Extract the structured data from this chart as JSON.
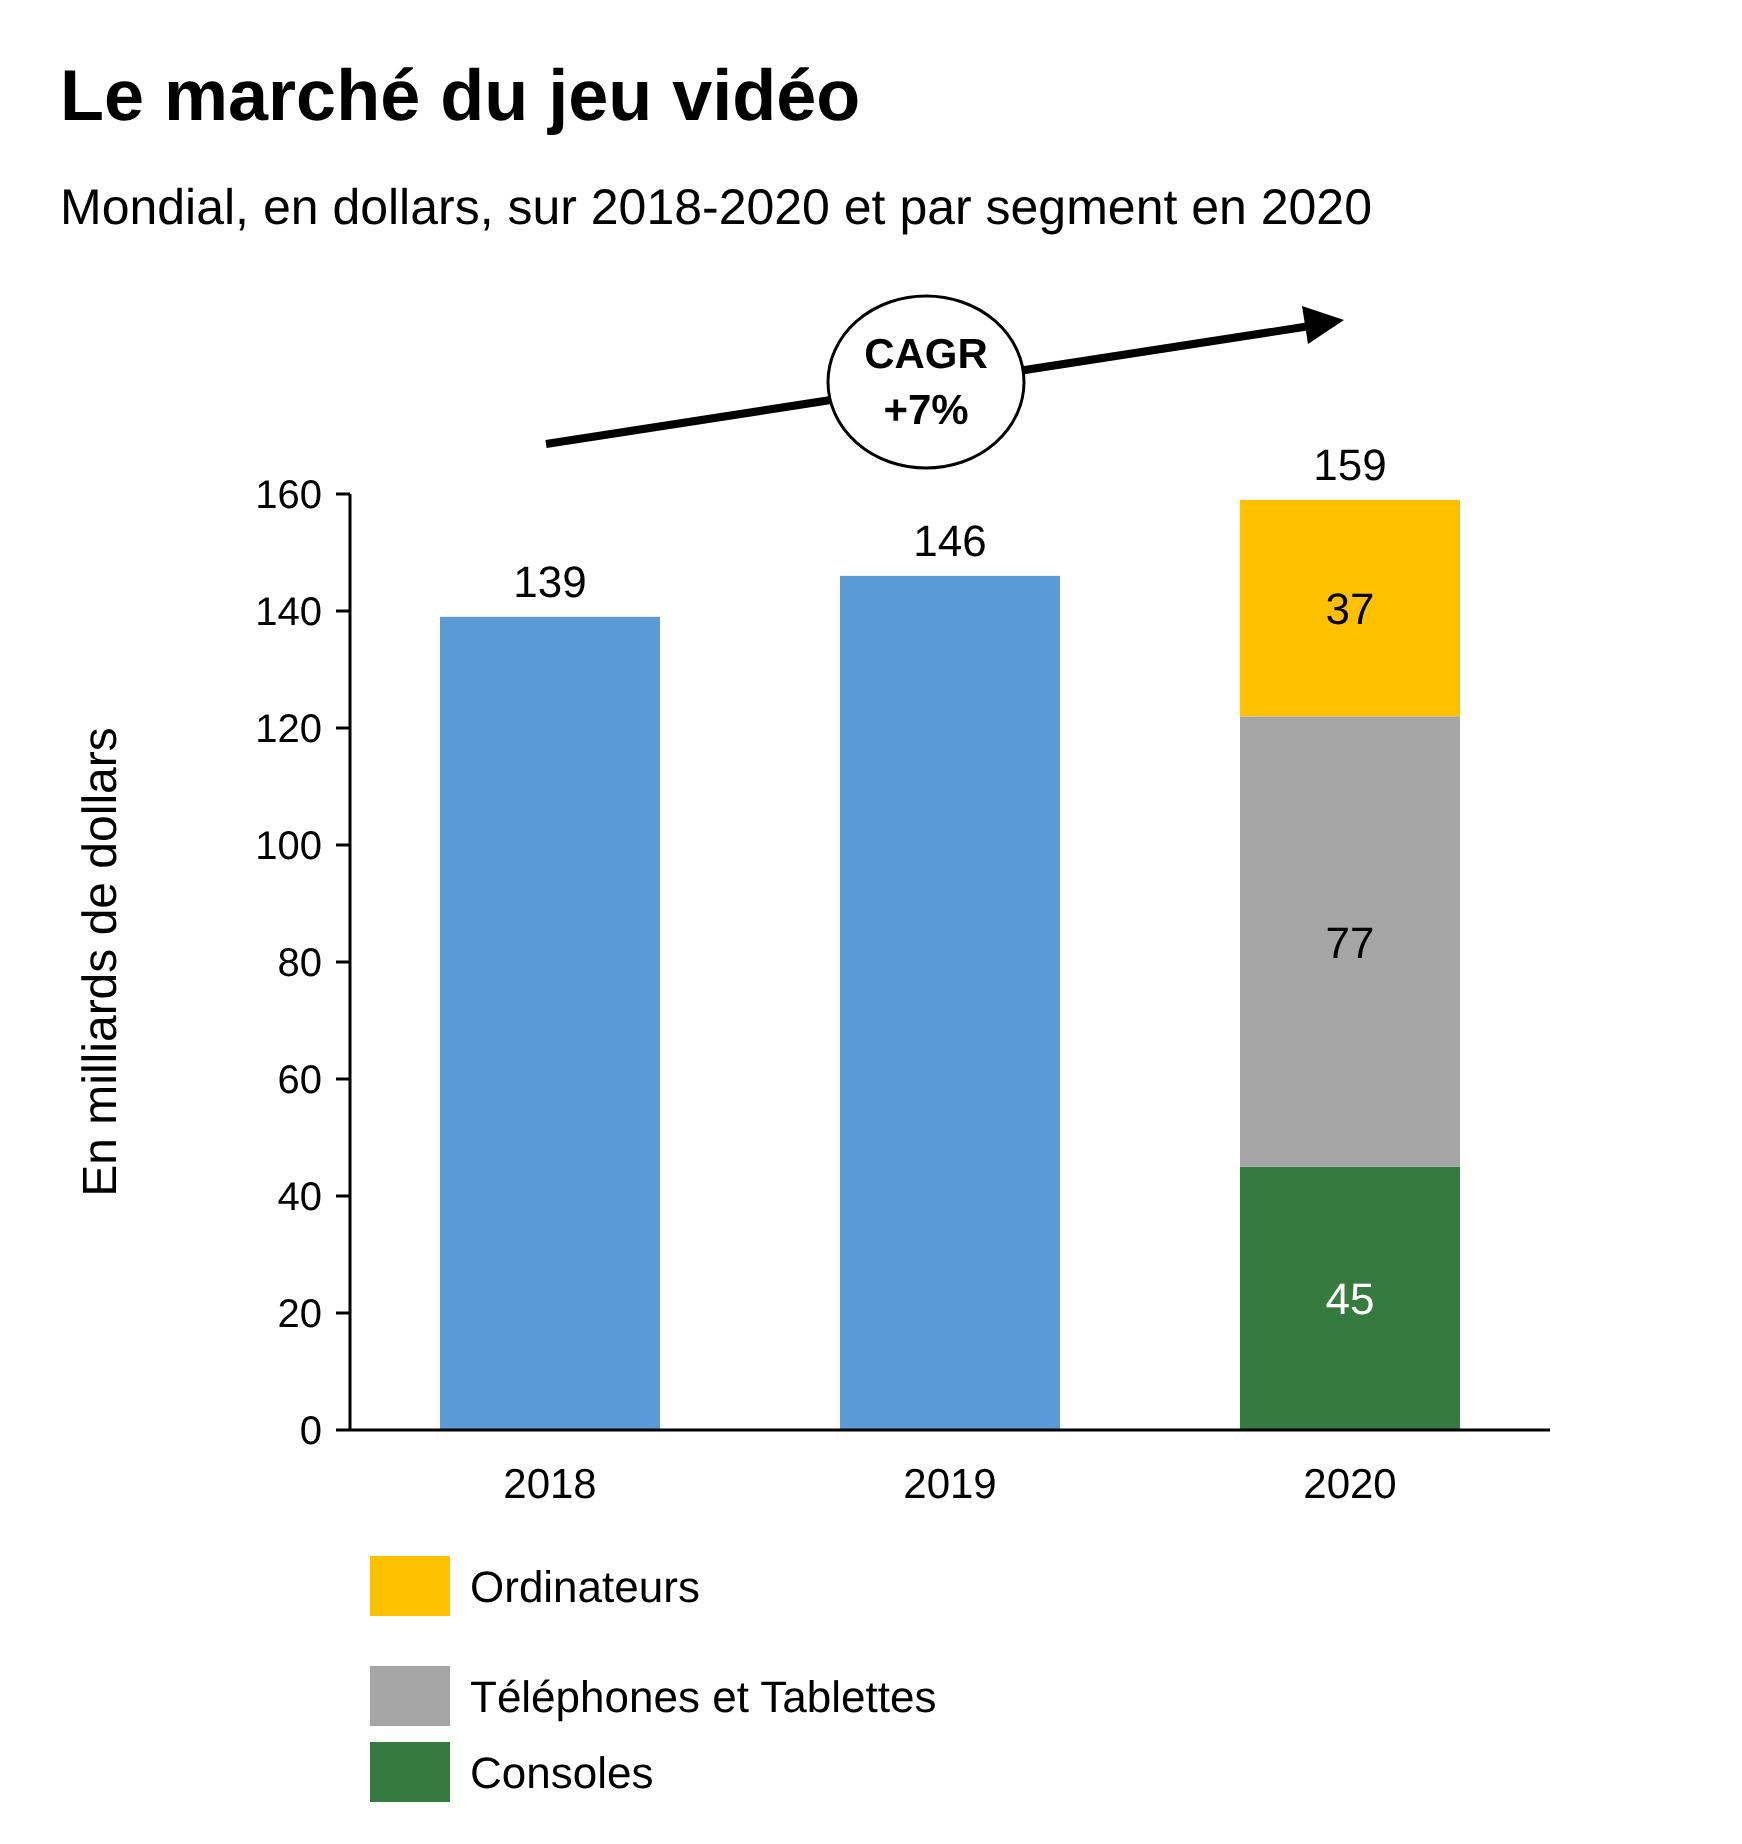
{
  "chart_data": {
    "type": "bar",
    "title": "Le marché du jeu vidéo",
    "subtitle": "Mondial, en dollars, sur 2018-2020 et par segment en 2020",
    "ylabel": "En milliards de dollars",
    "categories": [
      "2018",
      "2019",
      "2020"
    ],
    "stacked": true,
    "series": [
      {
        "color": "#5b9bd5",
        "values": [
          139,
          146,
          null
        ]
      },
      {
        "name": "Consoles",
        "color": "#357a3e",
        "values": [
          null,
          null,
          45
        ],
        "value_labels": [
          null,
          null,
          "45"
        ]
      },
      {
        "name": "Téléphones et Tablettes",
        "color": "#a5a5a5",
        "values": [
          null,
          null,
          77
        ],
        "value_labels": [
          null,
          null,
          "77"
        ]
      },
      {
        "name": "Ordinateurs",
        "color": "#ffc000",
        "values": [
          null,
          null,
          37
        ],
        "value_labels": [
          null,
          null,
          "37"
        ]
      }
    ],
    "totals": [
      "139",
      "146",
      "159"
    ],
    "ylim": [
      0,
      160
    ],
    "yticks": [
      0,
      20,
      40,
      60,
      80,
      100,
      120,
      140,
      160
    ],
    "grid": false,
    "legend": "bottom",
    "annotations": [
      "CAGR +7%"
    ]
  }
}
